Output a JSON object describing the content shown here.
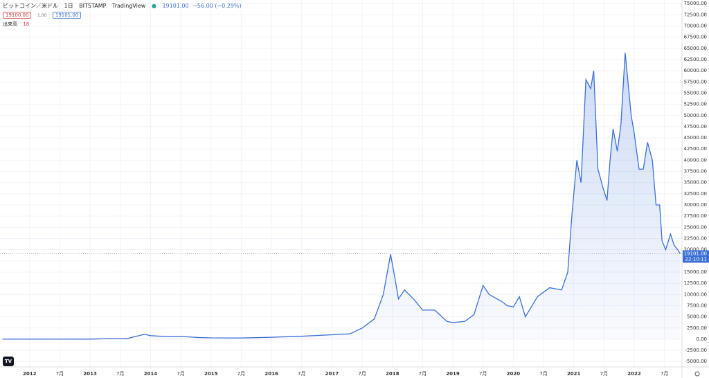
{
  "chart_data": {
    "type": "area",
    "title": "ビットコイン／米ドル",
    "interval": "1日",
    "exchange": "BITSTAMP",
    "source": "TradingView",
    "header_price": "19101.00",
    "header_change": "−56.00 (−0.29%)",
    "bid": "19100.00",
    "spread": "1.00",
    "ask": "19101.00",
    "volume_label": "出来高",
    "volume_value": "18",
    "countdown": "22:10:11",
    "last_price": {
      "value": 19101,
      "label": "19101.00"
    },
    "color": "#3b6fd6",
    "grid": true,
    "x": [
      2011.55,
      2012,
      2012.5,
      2013,
      2013.3,
      2013.6,
      2013.9,
      2014,
      2014.3,
      2014.5,
      2014.8,
      2015,
      2015.5,
      2016,
      2016.5,
      2017,
      2017.3,
      2017.5,
      2017.7,
      2017.85,
      2017.97,
      2018.05,
      2018.1,
      2018.2,
      2018.35,
      2018.5,
      2018.7,
      2018.9,
      2019,
      2019.2,
      2019.35,
      2019.5,
      2019.6,
      2019.8,
      2019.9,
      2020,
      2020.1,
      2020.2,
      2020.4,
      2020.6,
      2020.8,
      2020.9,
      2020.97,
      2021.05,
      2021.12,
      2021.2,
      2021.28,
      2021.33,
      2021.4,
      2021.48,
      2021.55,
      2021.6,
      2021.65,
      2021.72,
      2021.78,
      2021.85,
      2021.9,
      2021.95,
      2022,
      2022.08,
      2022.15,
      2022.22,
      2022.3,
      2022.36,
      2022.42,
      2022.46,
      2022.52,
      2022.6,
      2022.66,
      2022.72,
      2022.76
    ],
    "values": [
      5,
      5,
      7,
      13,
      130,
      100,
      1100,
      800,
      550,
      600,
      380,
      300,
      270,
      430,
      650,
      1000,
      1200,
      2500,
      4500,
      10000,
      19000,
      13000,
      9000,
      11000,
      9000,
      6500,
      6500,
      4000,
      3700,
      4000,
      5500,
      12000,
      10000,
      8500,
      7500,
      7200,
      9500,
      5000,
      9500,
      11500,
      11000,
      15000,
      28000,
      40000,
      35000,
      58000,
      56000,
      60000,
      38000,
      34000,
      31000,
      40000,
      47000,
      42000,
      48000,
      64000,
      57000,
      50000,
      46000,
      38000,
      38000,
      44000,
      40000,
      30000,
      30000,
      22000,
      20000,
      23500,
      21000,
      20000,
      19101
    ],
    "xlim": [
      2011.51,
      2022.79
    ],
    "xticks": [
      {
        "value": 2012,
        "label": "2012"
      },
      {
        "value": 2012.5,
        "label": "7月"
      },
      {
        "value": 2013,
        "label": "2013"
      },
      {
        "value": 2013.5,
        "label": "7月"
      },
      {
        "value": 2014,
        "label": "2014"
      },
      {
        "value": 2014.5,
        "label": "7月"
      },
      {
        "value": 2015,
        "label": "2015"
      },
      {
        "value": 2015.5,
        "label": "7月"
      },
      {
        "value": 2016,
        "label": "2016"
      },
      {
        "value": 2016.5,
        "label": "7月"
      },
      {
        "value": 2017,
        "label": "2017"
      },
      {
        "value": 2017.5,
        "label": "7月"
      },
      {
        "value": 2018,
        "label": "2018"
      },
      {
        "value": 2018.5,
        "label": "7月"
      },
      {
        "value": 2019,
        "label": "2019"
      },
      {
        "value": 2019.5,
        "label": "7月"
      },
      {
        "value": 2020,
        "label": "2020"
      },
      {
        "value": 2020.5,
        "label": "7月"
      },
      {
        "value": 2021,
        "label": "2021"
      },
      {
        "value": 2021.5,
        "label": "7月"
      },
      {
        "value": 2022,
        "label": "2022"
      },
      {
        "value": 2022.5,
        "label": "7月"
      }
    ],
    "ylim": [
      -6200,
      75800
    ],
    "yticks": [
      {
        "value": -5000,
        "label": "-5000.00"
      },
      {
        "value": -2500,
        "label": "-2500.00"
      },
      {
        "value": 0,
        "label": "0.00"
      },
      {
        "value": 2500,
        "label": "2500.00"
      },
      {
        "value": 5000,
        "label": "5000.00"
      },
      {
        "value": 7500,
        "label": "7500.00"
      },
      {
        "value": 10000,
        "label": "10000.00"
      },
      {
        "value": 12500,
        "label": "12500.00"
      },
      {
        "value": 15000,
        "label": "15000.00"
      },
      {
        "value": 17500,
        "label": "17500.00"
      },
      {
        "value": 20000,
        "label": "20000.00"
      },
      {
        "value": 22500,
        "label": "22500.00"
      },
      {
        "value": 25000,
        "label": "25000.00"
      },
      {
        "value": 27500,
        "label": "27500.00"
      },
      {
        "value": 30000,
        "label": "30000.00"
      },
      {
        "value": 32500,
        "label": "32500.00"
      },
      {
        "value": 35000,
        "label": "35000.00"
      },
      {
        "value": 37500,
        "label": "37500.00"
      },
      {
        "value": 40000,
        "label": "40000.00"
      },
      {
        "value": 42500,
        "label": "42500.00"
      },
      {
        "value": 45000,
        "label": "45000.00"
      },
      {
        "value": 47500,
        "label": "47500.00"
      },
      {
        "value": 50000,
        "label": "50000.00"
      },
      {
        "value": 52500,
        "label": "52500.00"
      },
      {
        "value": 55000,
        "label": "55000.00"
      },
      {
        "value": 57500,
        "label": "57500.00"
      },
      {
        "value": 60000,
        "label": "60000.00"
      },
      {
        "value": 62500,
        "label": "62500.00"
      },
      {
        "value": 65000,
        "label": "65000.00"
      },
      {
        "value": 67500,
        "label": "67500.00"
      },
      {
        "value": 70000,
        "label": "70000.00"
      },
      {
        "value": 72500,
        "label": "72500.00"
      },
      {
        "value": 75000,
        "label": "75000.00"
      }
    ]
  }
}
